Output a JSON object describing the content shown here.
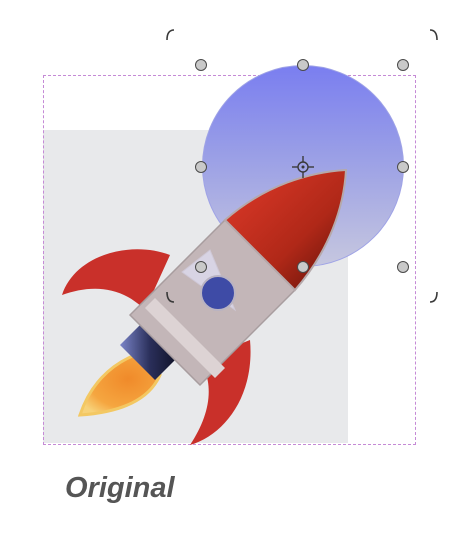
{
  "caption": {
    "text": "Original"
  },
  "graphic": {
    "subject": "rocket-icon",
    "circle_gradient_top": "#7a7ef0",
    "circle_gradient_bottom": "#c6c7df",
    "frame_border_color": "#c58ad6",
    "backdrop_color": "#e8e9eb"
  },
  "selection": {
    "handle_color": "#c9c9c9",
    "handle_border": "#4a4a4a"
  }
}
